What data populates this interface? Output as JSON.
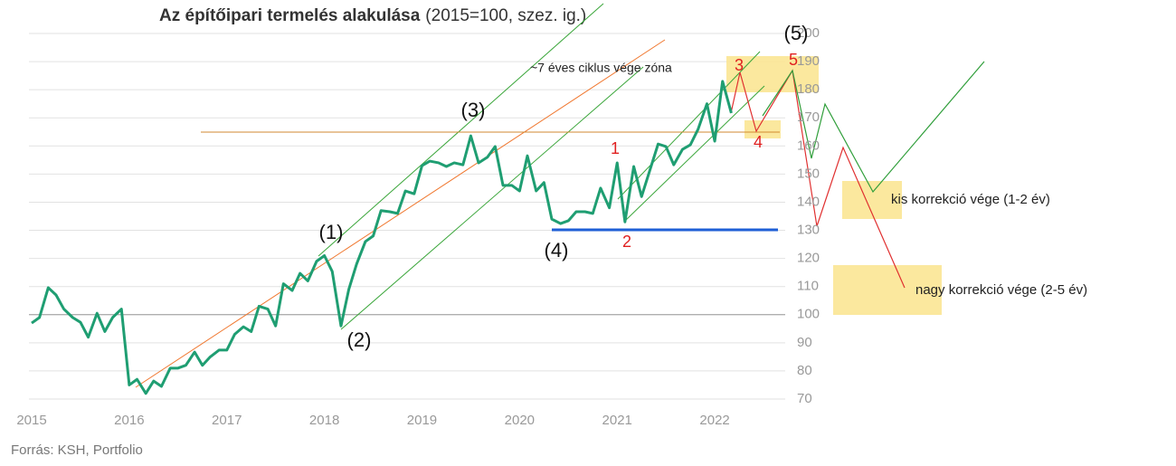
{
  "chart_data": {
    "type": "line",
    "title": "Az építőipari termelés alakulása",
    "subtitle": "(2015=100, szez. ig.)",
    "source": "Forrás: KSH, Portfolio",
    "x": [
      2015,
      2015.08,
      2015.17,
      2015.25,
      2015.33,
      2015.42,
      2015.5,
      2015.58,
      2015.67,
      2015.75,
      2015.83,
      2015.92,
      2016,
      2016.08,
      2016.17,
      2016.25,
      2016.33,
      2016.42,
      2016.5,
      2016.58,
      2016.67,
      2016.75,
      2016.83,
      2016.92,
      2017,
      2017.08,
      2017.17,
      2017.25,
      2017.33,
      2017.42,
      2017.5,
      2017.58,
      2017.67,
      2017.75,
      2017.83,
      2017.92,
      2018,
      2018.08,
      2018.17,
      2018.25,
      2018.33,
      2018.42,
      2018.5,
      2018.58,
      2018.67,
      2018.75,
      2018.83,
      2018.92,
      2019,
      2019.08,
      2019.17,
      2019.25,
      2019.33,
      2019.42,
      2019.5,
      2019.58,
      2019.67,
      2019.75,
      2019.83,
      2019.92,
      2020,
      2020.08,
      2020.17,
      2020.25,
      2020.33,
      2020.42,
      2020.5,
      2020.58,
      2020.67,
      2020.75,
      2020.83,
      2020.92,
      2021,
      2021.08,
      2021.17,
      2021.25,
      2021.33,
      2021.42,
      2021.5,
      2021.58,
      2021.67,
      2021.75,
      2021.83,
      2021.92,
      2022,
      2022.08,
      2022.17
    ],
    "series": [
      {
        "color": "#1f9e72",
        "values": [
          97,
          99,
          109.6,
          107,
          102,
          99,
          97.3,
          92,
          100.5,
          94,
          99,
          102,
          75,
          77,
          72,
          76.4,
          74.5,
          81,
          81,
          82,
          86.7,
          82,
          85,
          87.4,
          87.4,
          93,
          95.7,
          94,
          103,
          102,
          96,
          111,
          108.6,
          114.7,
          112,
          119,
          121,
          115.4,
          96,
          109,
          118,
          126,
          128,
          137,
          136.6,
          136,
          144,
          143,
          153,
          154.6,
          154,
          152.7,
          154,
          153.3,
          163.6,
          154,
          156,
          159.8,
          146,
          146,
          144,
          156.5,
          144,
          147,
          134,
          132.4,
          133.4,
          136.6,
          136.6,
          136,
          145,
          138,
          154,
          133,
          152.7,
          142,
          150.8,
          160.7,
          159.8,
          153.3,
          158.8,
          160.4,
          166,
          175,
          161.7,
          183,
          171.7
        ]
      }
    ],
    "xlim": [
      2015,
      2022.75
    ],
    "xticks": [
      2015,
      2016,
      2017,
      2018,
      2019,
      2020,
      2021,
      2022
    ],
    "ylim": [
      70,
      200
    ],
    "yticks": [
      70,
      80,
      90,
      100,
      110,
      120,
      130,
      140,
      150,
      160,
      170,
      180,
      190,
      200
    ],
    "reference_line": 100,
    "grid": true,
    "annotations": [
      "(1)",
      "(2)",
      "(3)",
      "(4)",
      "(5)",
      "1",
      "2",
      "3",
      "4",
      "5",
      "~7 éves ciklus vége zóna",
      "kis korrekció vége (1-2 év)",
      "nagy korrekció vége (2-5 év)"
    ]
  }
}
